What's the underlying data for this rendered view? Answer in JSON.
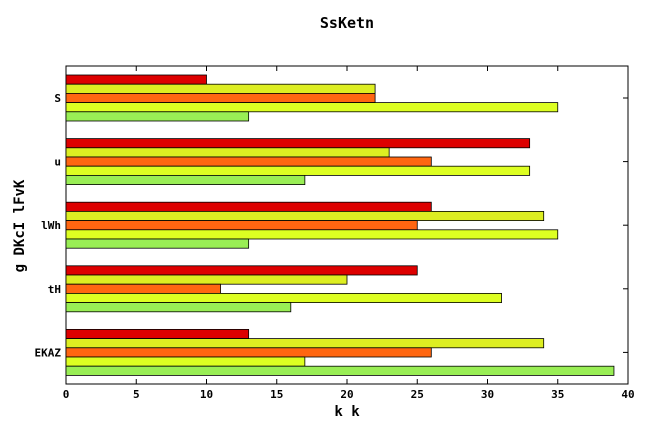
{
  "chart_data": {
    "type": "bar",
    "orientation": "horizontal",
    "title": "SsKetn",
    "xlabel": "k    k",
    "ylabel": "g  DKcI lFvK",
    "categories": [
      "S",
      "u",
      "lWh",
      "tH",
      "EKAZ"
    ],
    "xlim": [
      0,
      40
    ],
    "xticks": [
      0,
      5,
      10,
      15,
      20,
      25,
      30,
      35,
      40
    ],
    "grid": false,
    "legend": "none",
    "series": [
      {
        "color": "#dd0000",
        "values": [
          10,
          33,
          26,
          25,
          13
        ]
      },
      {
        "color": "#ddee22",
        "values": [
          22,
          23,
          34,
          20,
          34
        ]
      },
      {
        "color": "#ff6611",
        "values": [
          22,
          26,
          25,
          11,
          26
        ]
      },
      {
        "color": "#ddff22",
        "values": [
          35,
          33,
          35,
          31,
          17
        ]
      },
      {
        "color": "#99ee55",
        "values": [
          13,
          17,
          13,
          16,
          39
        ]
      }
    ]
  }
}
